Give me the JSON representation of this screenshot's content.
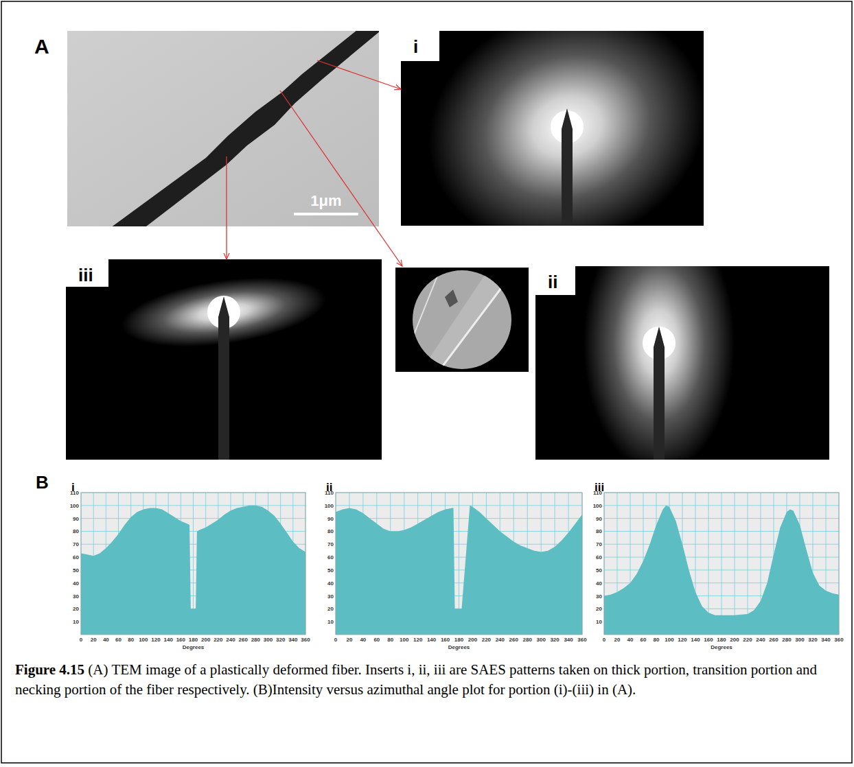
{
  "figure": {
    "panel_a": {
      "label": "A",
      "scale_bar": "1μm",
      "insets": [
        "i",
        "ii",
        "iii"
      ]
    },
    "panel_b": {
      "label": "B"
    },
    "caption": {
      "lead": "Figure 4.15",
      "text": " (A) TEM image of a plastically deformed fiber. Inserts i, ii, iii are SAES patterns taken on thick portion, transition portion and necking portion of the fiber respectively. (B)Intensity versus azimuthal angle plot for portion (i)-(iii) in (A)."
    }
  },
  "chart_data": [
    {
      "type": "area",
      "title": "i",
      "x_label": "Degrees",
      "color": "#5cbec2",
      "grid": true,
      "x": [
        0,
        10,
        20,
        30,
        40,
        50,
        60,
        70,
        80,
        90,
        100,
        110,
        120,
        130,
        140,
        150,
        160,
        170,
        174,
        176,
        184,
        186,
        190,
        200,
        210,
        220,
        230,
        240,
        250,
        260,
        270,
        280,
        290,
        300,
        310,
        320,
        330,
        340,
        350,
        360
      ],
      "values": [
        63,
        62,
        61,
        63,
        67,
        72,
        78,
        85,
        91,
        95,
        97,
        98,
        98,
        97,
        94,
        91,
        88,
        86,
        85,
        20,
        20,
        80,
        81,
        83,
        86,
        89,
        93,
        96,
        98,
        99,
        100,
        100,
        99,
        96,
        92,
        86,
        79,
        72,
        67,
        64
      ],
      "xlim": [
        0,
        360
      ],
      "ylim": [
        0,
        110
      ],
      "xticks": [
        0,
        20,
        40,
        60,
        80,
        100,
        120,
        140,
        160,
        180,
        200,
        220,
        240,
        260,
        280,
        300,
        320,
        340,
        360
      ],
      "yticks": [
        10,
        20,
        30,
        40,
        50,
        60,
        70,
        80,
        90,
        100,
        110
      ]
    },
    {
      "type": "area",
      "title": "ii",
      "x_label": "Degrees",
      "color": "#5cbec2",
      "grid": true,
      "x": [
        0,
        10,
        20,
        30,
        40,
        50,
        60,
        70,
        80,
        90,
        100,
        110,
        120,
        130,
        140,
        150,
        160,
        170,
        172,
        174,
        182,
        184,
        196,
        200,
        210,
        220,
        230,
        240,
        250,
        260,
        270,
        280,
        290,
        300,
        310,
        320,
        330,
        340,
        350,
        360
      ],
      "values": [
        95,
        97,
        98,
        97,
        94,
        90,
        86,
        82,
        80,
        80,
        81,
        83,
        86,
        89,
        92,
        95,
        97,
        98,
        98,
        20,
        20,
        20,
        100,
        99,
        95,
        90,
        85,
        80,
        76,
        72,
        69,
        67,
        65,
        64,
        65,
        68,
        73,
        79,
        86,
        93
      ],
      "xlim": [
        0,
        360
      ],
      "ylim": [
        0,
        110
      ],
      "xticks": [
        0,
        20,
        40,
        60,
        80,
        100,
        120,
        140,
        160,
        180,
        200,
        220,
        240,
        260,
        280,
        300,
        320,
        340,
        360
      ],
      "yticks": [
        10,
        20,
        30,
        40,
        50,
        60,
        70,
        80,
        90,
        100,
        110
      ]
    },
    {
      "type": "area",
      "title": "iii",
      "x_label": "Degrees",
      "color": "#5cbec2",
      "grid": true,
      "x": [
        0,
        10,
        20,
        30,
        40,
        50,
        60,
        70,
        80,
        90,
        95,
        100,
        110,
        120,
        130,
        140,
        150,
        160,
        170,
        180,
        200,
        220,
        230,
        240,
        250,
        260,
        270,
        280,
        285,
        290,
        300,
        310,
        320,
        330,
        340,
        350,
        360
      ],
      "values": [
        30,
        31,
        33,
        36,
        40,
        47,
        57,
        70,
        85,
        97,
        100,
        99,
        88,
        70,
        50,
        33,
        22,
        17,
        15,
        15,
        15,
        16,
        19,
        26,
        40,
        62,
        83,
        95,
        97,
        96,
        85,
        66,
        48,
        38,
        34,
        32,
        31
      ],
      "xlim": [
        0,
        360
      ],
      "ylim": [
        0,
        110
      ],
      "xticks": [
        0,
        20,
        40,
        60,
        80,
        100,
        120,
        140,
        160,
        180,
        200,
        220,
        240,
        260,
        280,
        300,
        320,
        340,
        360
      ],
      "yticks": [
        10,
        20,
        30,
        40,
        50,
        60,
        70,
        80,
        90,
        100,
        110
      ]
    }
  ]
}
